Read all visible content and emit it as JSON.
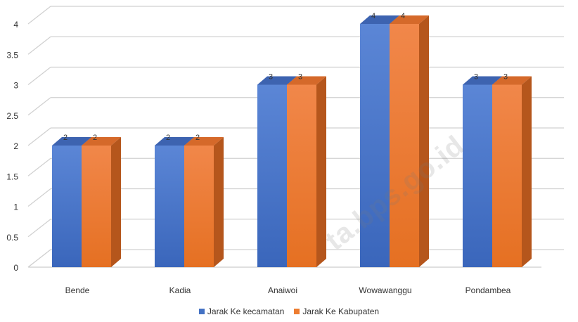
{
  "chart_data": {
    "type": "bar",
    "categories": [
      "Bende",
      "Kadia",
      "Anaiwoi",
      "Wowawanggu",
      "Pondambea"
    ],
    "series": [
      {
        "name": "Jarak Ke kecamatan",
        "values": [
          2,
          2,
          3,
          4,
          3
        ],
        "color": "#4472C4"
      },
      {
        "name": "Jarak Ke Kabupaten",
        "values": [
          2,
          2,
          3,
          4,
          3
        ],
        "color": "#ED7D31"
      }
    ],
    "ylim": [
      0,
      4
    ],
    "yticks": [
      "0",
      "0.5",
      "1",
      "1.5",
      "2",
      "2.5",
      "3",
      "3.5",
      "4"
    ],
    "grid": true,
    "style": "3d-clustered-column",
    "legend_position": "bottom"
  },
  "watermark": "ta.bps.go.id"
}
